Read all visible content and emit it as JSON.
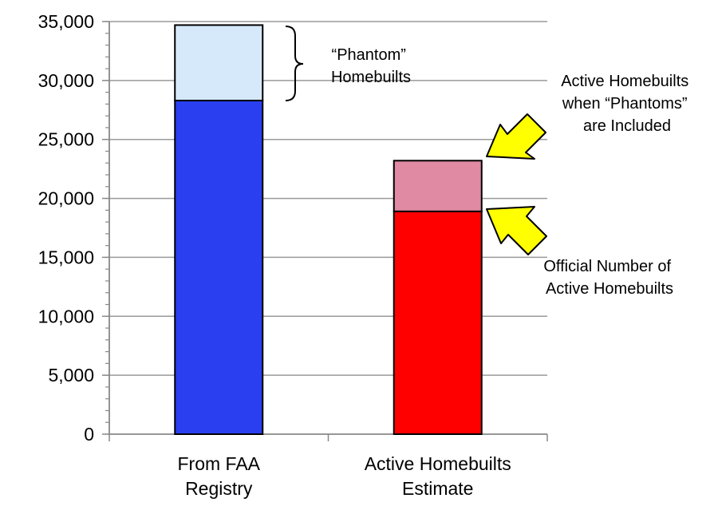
{
  "chart_data": {
    "type": "bar",
    "stacked": true,
    "categories": [
      [
        "From FAA",
        "Registry"
      ],
      [
        "Active Homebuilts",
        "Estimate"
      ]
    ],
    "series": [
      {
        "values": [
          28300,
          18900
        ],
        "colors": [
          "#2a3ff0",
          "#ff0000"
        ]
      },
      {
        "values": [
          6400,
          4300
        ],
        "colors": [
          "#d6e9fb",
          "#e08aa3"
        ]
      }
    ],
    "ylim": [
      0,
      35000
    ],
    "yticks": [
      {
        "value": 0,
        "label": "0"
      },
      {
        "value": 5000,
        "label": "5,000"
      },
      {
        "value": 10000,
        "label": "10,000"
      },
      {
        "value": 15000,
        "label": "15,000"
      },
      {
        "value": 20000,
        "label": "20,000"
      },
      {
        "value": 25000,
        "label": "25,000"
      },
      {
        "value": 30000,
        "label": "30,000"
      },
      {
        "value": 35000,
        "label": "35,000"
      }
    ],
    "minor_ticks_per_major": 5,
    "grid": true,
    "annotations": {
      "phantom": [
        "“Phantom”",
        "Homebuilts"
      ],
      "active_with_phantoms": [
        "Active Homebuilts",
        "when “Phantoms”",
        "are Included"
      ],
      "official": [
        "Official Number of",
        "Active Homebuilts"
      ]
    },
    "arrow_color": "#ffff00"
  }
}
